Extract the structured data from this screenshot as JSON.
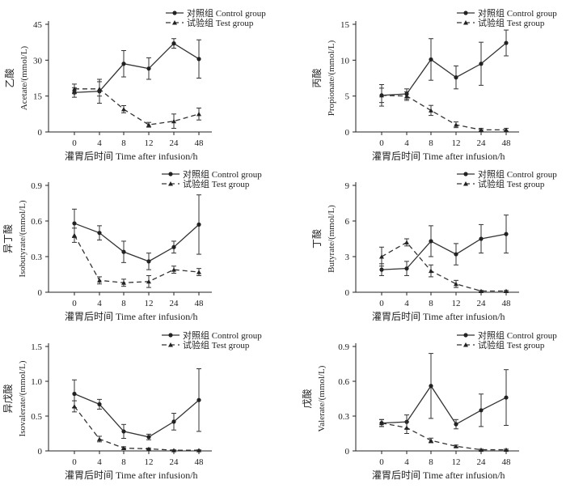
{
  "legend": {
    "control": "对照组  Control group",
    "test": "试验组  Test group"
  },
  "xlabel": "灌胃后时间  Time after infusion/h",
  "chart_data": [
    {
      "type": "line",
      "ylabel_cn": "乙酸",
      "ylabel_en": "Acetate/(mmol/L)",
      "categories": [
        "0",
        "4",
        "8",
        "12",
        "24",
        "48"
      ],
      "ylim": [
        0,
        45
      ],
      "yticks": [
        "0",
        "15",
        "30",
        "45"
      ],
      "series": [
        {
          "name": "对照组  Control group",
          "values": [
            16.5,
            17,
            28.5,
            26.5,
            37,
            30.5
          ],
          "err": [
            2,
            5,
            5.5,
            4.5,
            2,
            8
          ]
        },
        {
          "name": "试验组  Test group",
          "values": [
            18,
            18,
            9.5,
            3,
            4.5,
            7.5
          ],
          "err": [
            2,
            3,
            1.5,
            1,
            3,
            2.5
          ]
        }
      ]
    },
    {
      "type": "line",
      "ylabel_cn": "丙酸",
      "ylabel_en": "Propionate/(mmol/L)",
      "categories": [
        "0",
        "4",
        "8",
        "12",
        "24",
        "48"
      ],
      "ylim": [
        0,
        15
      ],
      "yticks": [
        "0",
        "5",
        "10",
        "15"
      ],
      "series": [
        {
          "name": "对照组  Control group",
          "values": [
            5.1,
            5.3,
            10.1,
            7.6,
            9.5,
            12.4
          ],
          "err": [
            1.5,
            0.7,
            2.9,
            1.6,
            3,
            1.8
          ]
        },
        {
          "name": "试验组  Test group",
          "values": [
            5.1,
            5.0,
            3.0,
            1.0,
            0.3,
            0.3
          ],
          "err": [
            1.0,
            0.6,
            0.7,
            0.4,
            0.2,
            0.2
          ]
        }
      ]
    },
    {
      "type": "line",
      "ylabel_cn": "异丁酸",
      "ylabel_en": "Isobutyrate/(mmol/L)",
      "categories": [
        "0",
        "4",
        "8",
        "12",
        "24",
        "48"
      ],
      "ylim": [
        0,
        0.9
      ],
      "yticks": [
        "0",
        "0.3",
        "0.6",
        "0.9"
      ],
      "series": [
        {
          "name": "对照组  Control group",
          "values": [
            0.58,
            0.5,
            0.34,
            0.26,
            0.38,
            0.57
          ],
          "err": [
            0.12,
            0.06,
            0.09,
            0.07,
            0.05,
            0.25
          ]
        },
        {
          "name": "试验组  Test group",
          "values": [
            0.48,
            0.1,
            0.08,
            0.09,
            0.19,
            0.17
          ],
          "err": [
            0.06,
            0.03,
            0.03,
            0.05,
            0.03,
            0.03
          ]
        }
      ]
    },
    {
      "type": "line",
      "ylabel_cn": "丁酸",
      "ylabel_en": "Butyrate/(mmol/L)",
      "categories": [
        "0",
        "4",
        "8",
        "12",
        "24",
        "48"
      ],
      "ylim": [
        0,
        9
      ],
      "yticks": [
        "0",
        "3",
        "6",
        "9"
      ],
      "series": [
        {
          "name": "对照组  Control group",
          "values": [
            1.9,
            2.0,
            4.3,
            3.2,
            4.5,
            4.9
          ],
          "err": [
            0.5,
            0.6,
            1.3,
            0.9,
            1.2,
            1.6
          ]
        },
        {
          "name": "试验组  Test group",
          "values": [
            3.0,
            4.2,
            1.8,
            0.7,
            0.1,
            0.1
          ],
          "err": [
            0.8,
            0.3,
            0.5,
            0.3,
            0.05,
            0.05
          ]
        }
      ]
    },
    {
      "type": "line",
      "ylabel_cn": "异戊酸",
      "ylabel_en": "Isovalerate/(mmol/L)",
      "categories": [
        "0",
        "4",
        "8",
        "12",
        "24",
        "48"
      ],
      "ylim": [
        0,
        1.5
      ],
      "yticks": [
        "0",
        "0.5",
        "1.0",
        "1.5"
      ],
      "series": [
        {
          "name": "对照组  Control group",
          "values": [
            0.82,
            0.67,
            0.28,
            0.2,
            0.42,
            0.73
          ],
          "err": [
            0.2,
            0.07,
            0.1,
            0.04,
            0.12,
            0.45
          ]
        },
        {
          "name": "试验组  Test group",
          "values": [
            0.64,
            0.17,
            0.04,
            0.03,
            0.01,
            0.01
          ],
          "err": [
            0.08,
            0.04,
            0.02,
            0.01,
            0.005,
            0.005
          ]
        }
      ]
    },
    {
      "type": "line",
      "ylabel_cn": "戊酸",
      "ylabel_en": "Valerate/(mmol/L)",
      "categories": [
        "0",
        "4",
        "8",
        "12",
        "24",
        "48"
      ],
      "ylim": [
        0,
        0.9
      ],
      "yticks": [
        "0",
        "0.3",
        "0.6",
        "0.9"
      ],
      "series": [
        {
          "name": "对照组  Control group",
          "values": [
            0.24,
            0.25,
            0.56,
            0.23,
            0.35,
            0.46
          ],
          "err": [
            0.03,
            0.06,
            0.28,
            0.04,
            0.14,
            0.24
          ]
        },
        {
          "name": "试验组  Test group",
          "values": [
            0.24,
            0.2,
            0.09,
            0.04,
            0.01,
            0.01
          ],
          "err": [
            0.03,
            0.05,
            0.02,
            0.01,
            0.005,
            0.005
          ]
        }
      ]
    }
  ]
}
